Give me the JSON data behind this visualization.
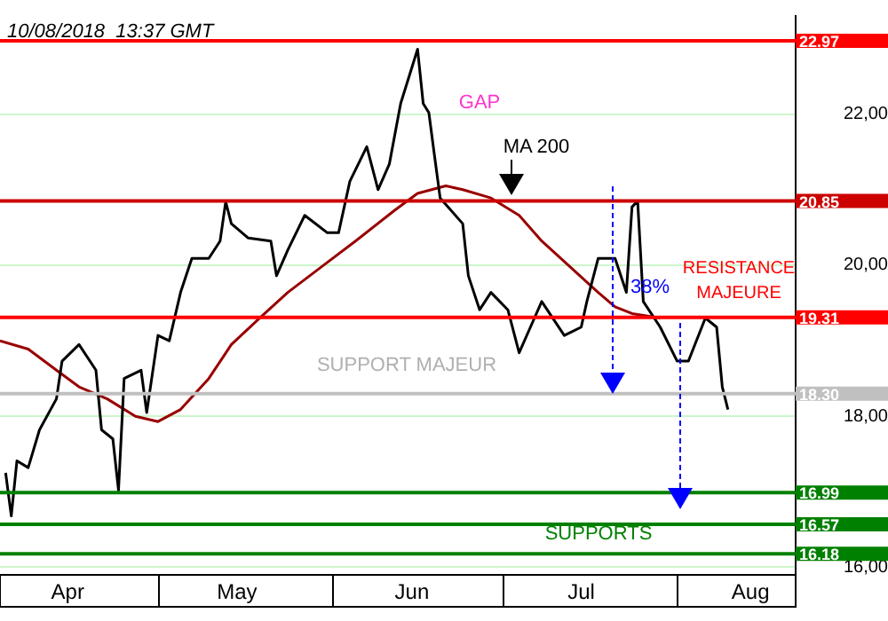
{
  "chart_data": {
    "type": "line",
    "subtitle": "10/08/2018  13:37 GMT",
    "xlim": [
      "2018-04-03",
      "2018-08-22"
    ],
    "xticks": [
      {
        "value": "2018-04-15",
        "label": "Apr"
      },
      {
        "value": "2018-05-15",
        "label": "May"
      },
      {
        "value": "2018-06-15",
        "label": "Jun"
      },
      {
        "value": "2018-07-15",
        "label": "Jul"
      },
      {
        "value": "2018-08-14",
        "label": "Aug"
      }
    ],
    "ylim": [
      15.9,
      23.3
    ],
    "yticks": [
      {
        "value": 16,
        "label": "16,00"
      },
      {
        "value": 18,
        "label": "18,00"
      },
      {
        "value": 20,
        "label": "20,00"
      },
      {
        "value": 22,
        "label": "22,00"
      }
    ],
    "grid": "y",
    "legend": false,
    "marker": "none",
    "series": [
      {
        "color": "#000000",
        "x": [
          "2018-04-04",
          "2018-04-05",
          "2018-04-06",
          "2018-04-08",
          "2018-04-10",
          "2018-04-13",
          "2018-04-14",
          "2018-04-17",
          "2018-04-20",
          "2018-04-21",
          "2018-04-23",
          "2018-04-24",
          "2018-04-25",
          "2018-04-28",
          "2018-04-29",
          "2018-05-01",
          "2018-05-03",
          "2018-05-05",
          "2018-05-07",
          "2018-05-10",
          "2018-05-12",
          "2018-05-13",
          "2018-05-14",
          "2018-05-17",
          "2018-05-21",
          "2018-05-22",
          "2018-05-24",
          "2018-05-27",
          "2018-05-31",
          "2018-06-02",
          "2018-06-04",
          "2018-06-07",
          "2018-06-09",
          "2018-06-11",
          "2018-06-13",
          "2018-06-16",
          "2018-06-17",
          "2018-06-18",
          "2018-06-19",
          "2018-06-20",
          "2018-06-24",
          "2018-06-25",
          "2018-06-27",
          "2018-06-29",
          "2018-07-02",
          "2018-07-04",
          "2018-07-06",
          "2018-07-08",
          "2018-07-12",
          "2018-07-15",
          "2018-07-16",
          "2018-07-18",
          "2018-07-21",
          "2018-07-23",
          "2018-07-24",
          "2018-07-25",
          "2018-07-26",
          "2018-07-29",
          "2018-08-01",
          "2018-08-03",
          "2018-08-06",
          "2018-08-08",
          "2018-08-09",
          "2018-08-10"
        ],
        "values": [
          17.25,
          16.68,
          17.41,
          17.32,
          17.82,
          18.23,
          18.73,
          18.95,
          18.61,
          17.82,
          17.7,
          17.02,
          18.5,
          18.61,
          18.05,
          19.07,
          19.0,
          19.64,
          20.09,
          20.09,
          20.32,
          20.84,
          20.55,
          20.36,
          20.32,
          19.86,
          20.2,
          20.66,
          20.43,
          20.43,
          21.11,
          21.57,
          21.0,
          21.34,
          22.14,
          22.86,
          22.14,
          22.02,
          21.45,
          20.89,
          20.55,
          19.86,
          19.41,
          19.64,
          19.41,
          18.84,
          19.18,
          19.52,
          19.07,
          19.18,
          19.52,
          20.09,
          20.09,
          19.64,
          20.77,
          20.85,
          19.52,
          19.18,
          18.73,
          18.73,
          19.3,
          19.18,
          18.39,
          18.09
        ]
      },
      {
        "color": "#990000",
        "x": [
          "2018-04-03",
          "2018-04-08",
          "2018-04-13",
          "2018-04-17",
          "2018-04-22",
          "2018-04-27",
          "2018-05-01",
          "2018-05-05",
          "2018-05-10",
          "2018-05-14",
          "2018-05-19",
          "2018-05-24",
          "2018-05-30",
          "2018-06-05",
          "2018-06-12",
          "2018-06-16",
          "2018-06-21",
          "2018-06-24",
          "2018-06-29",
          "2018-07-04",
          "2018-07-08",
          "2018-07-13",
          "2018-07-18",
          "2018-07-21",
          "2018-07-24",
          "2018-07-29"
        ],
        "values": [
          19.0,
          18.89,
          18.61,
          18.39,
          18.23,
          18.0,
          17.93,
          18.09,
          18.5,
          18.95,
          19.3,
          19.64,
          19.98,
          20.32,
          20.73,
          20.95,
          21.05,
          21.0,
          20.89,
          20.66,
          20.32,
          19.98,
          19.64,
          19.45,
          19.36,
          19.3
        ]
      }
    ],
    "ref_lines": [
      {
        "axis": "y",
        "value": 22.97,
        "label": "22.97",
        "color": "#ff0000"
      },
      {
        "axis": "y",
        "value": 20.85,
        "label": "20.85",
        "color": "#cc0000"
      },
      {
        "axis": "y",
        "value": 19.31,
        "label": "19.31",
        "color": "#ff0000"
      },
      {
        "axis": "y",
        "value": 18.3,
        "label": "18.30",
        "color": "#c0c0c0"
      },
      {
        "axis": "y",
        "value": 16.99,
        "label": "16.99",
        "color": "#008000"
      },
      {
        "axis": "y",
        "value": 16.57,
        "label": "16.57",
        "color": "#008000"
      },
      {
        "axis": "y",
        "value": 16.18,
        "label": "16.18",
        "color": "#008000"
      }
    ],
    "annotations": [
      "GAP",
      "MA 200",
      "RESISTANCE",
      "MAJEURE",
      "38%",
      "SUPPORT MAJEUR",
      "SUPPORTS"
    ]
  }
}
